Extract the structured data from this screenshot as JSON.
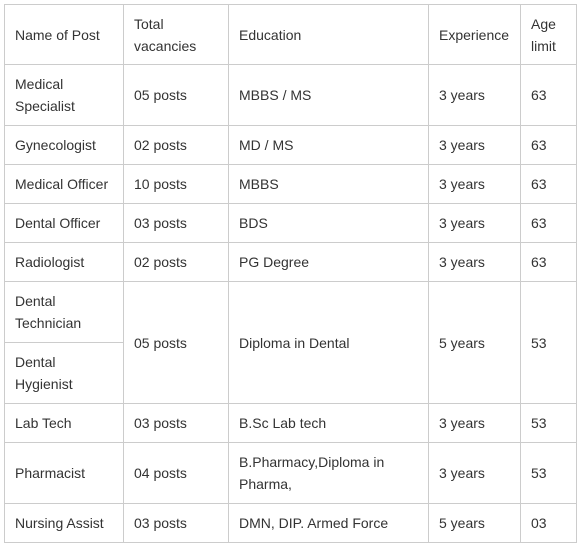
{
  "table": {
    "headers": {
      "post": "Name of Post",
      "vacancies": "Total vacancies",
      "education": "Education",
      "experience": "Experience",
      "age": "Age limit"
    },
    "rows": [
      {
        "post": "Medical Specialist",
        "vacancies": "05 posts",
        "education": "MBBS / MS",
        "experience": "3 years",
        "age": "63"
      },
      {
        "post": "Gynecologist",
        "vacancies": "02 posts",
        "education": "MD / MS",
        "experience": "3 years",
        "age": "63"
      },
      {
        "post": "Medical Officer",
        "vacancies": "10 posts",
        "education": "MBBS",
        "experience": "3 years",
        "age": "63"
      },
      {
        "post": "Dental Officer",
        "vacancies": "03 posts",
        "education": "BDS",
        "experience": "3 years",
        "age": "63"
      },
      {
        "post": "Radiologist",
        "vacancies": "02 posts",
        "education": "PG Degree",
        "experience": "3 years",
        "age": "63"
      },
      {
        "post": "Dental Technician",
        "vacancies": "05 posts",
        "education": "Diploma in Dental",
        "experience": "5 years",
        "age": "53"
      },
      {
        "post": "Dental Hygienist"
      },
      {
        "post": "Lab Tech",
        "vacancies": "03 posts",
        "education": "B.Sc Lab tech",
        "experience": "3 years",
        "age": "53"
      },
      {
        "post": "Pharmacist",
        "vacancies": "04 posts",
        "education": "B.Pharmacy,Diploma in Pharma,",
        "experience": "3 years",
        "age": "53"
      },
      {
        "post": "Nursing Assist",
        "vacancies": "03 posts",
        "education": "DMN, DIP. Armed Force",
        "experience": "5 years",
        "age": "03"
      }
    ]
  }
}
